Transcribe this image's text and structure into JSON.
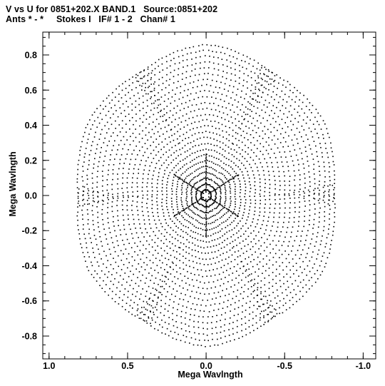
{
  "title": {
    "line1": "V vs U for 0851+202.X BAND.1   Source:0851+202",
    "line2": "Ants * - *     Stokes I   IF# 1 - 2   Chan# 1"
  },
  "chart_data": {
    "type": "scatter",
    "xlabel": "Mega Wavlngth",
    "ylabel": "Mega Wavlngth",
    "xlim": [
      1.04,
      -1.08
    ],
    "ylim": [
      -0.93,
      0.93
    ],
    "x_reversed": true,
    "grid": false,
    "x_ticks": [
      1.0,
      0.5,
      0.0,
      -0.5,
      -1.0
    ],
    "x_tick_labels": [
      "1.0",
      "0.5",
      "0.0",
      "-0.5",
      "-1.0"
    ],
    "y_ticks": [
      0.8,
      0.6,
      0.4,
      0.2,
      0.0,
      -0.2,
      -0.4,
      -0.6,
      -0.8
    ],
    "y_tick_labels": [
      "0.8",
      "0.6",
      "0.4",
      "0.2",
      "0.0",
      "-0.2",
      "-0.4",
      "-0.6",
      "-0.8"
    ],
    "series": [
      {
        "arm_angles_deg": [
          30,
          90,
          150,
          210,
          270,
          330
        ],
        "arm_tip_radius": 0.86,
        "ring_count": 26,
        "point_color": "#000000"
      }
    ]
  }
}
